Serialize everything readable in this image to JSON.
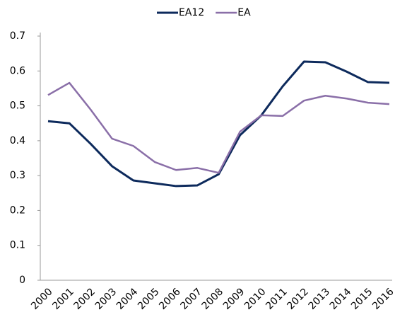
{
  "chart_data": {
    "type": "line",
    "categories": [
      "2000",
      "2001",
      "2002",
      "2003",
      "2004",
      "2005",
      "2006",
      "2007",
      "2008",
      "2009",
      "2010",
      "2011",
      "2012",
      "2013",
      "2014",
      "2015",
      "2016"
    ],
    "series": [
      {
        "name": "EA12",
        "color": "#0d2a5c",
        "values": [
          0.456,
          0.45,
          0.391,
          0.327,
          0.286,
          0.278,
          0.27,
          0.272,
          0.304,
          0.416,
          0.473,
          0.556,
          0.627,
          0.625,
          0.598,
          0.568,
          0.566
        ]
      },
      {
        "name": "EA",
        "color": "#8a6fa8",
        "values": [
          0.531,
          0.566,
          0.489,
          0.406,
          0.385,
          0.339,
          0.316,
          0.322,
          0.308,
          0.426,
          0.473,
          0.471,
          0.515,
          0.529,
          0.521,
          0.509,
          0.505
        ]
      }
    ],
    "ylim": [
      0,
      0.7
    ],
    "yticks": [
      0,
      0.1,
      0.2,
      0.3,
      0.4,
      0.5,
      0.6,
      0.7
    ],
    "grid": false,
    "legend": "top"
  }
}
